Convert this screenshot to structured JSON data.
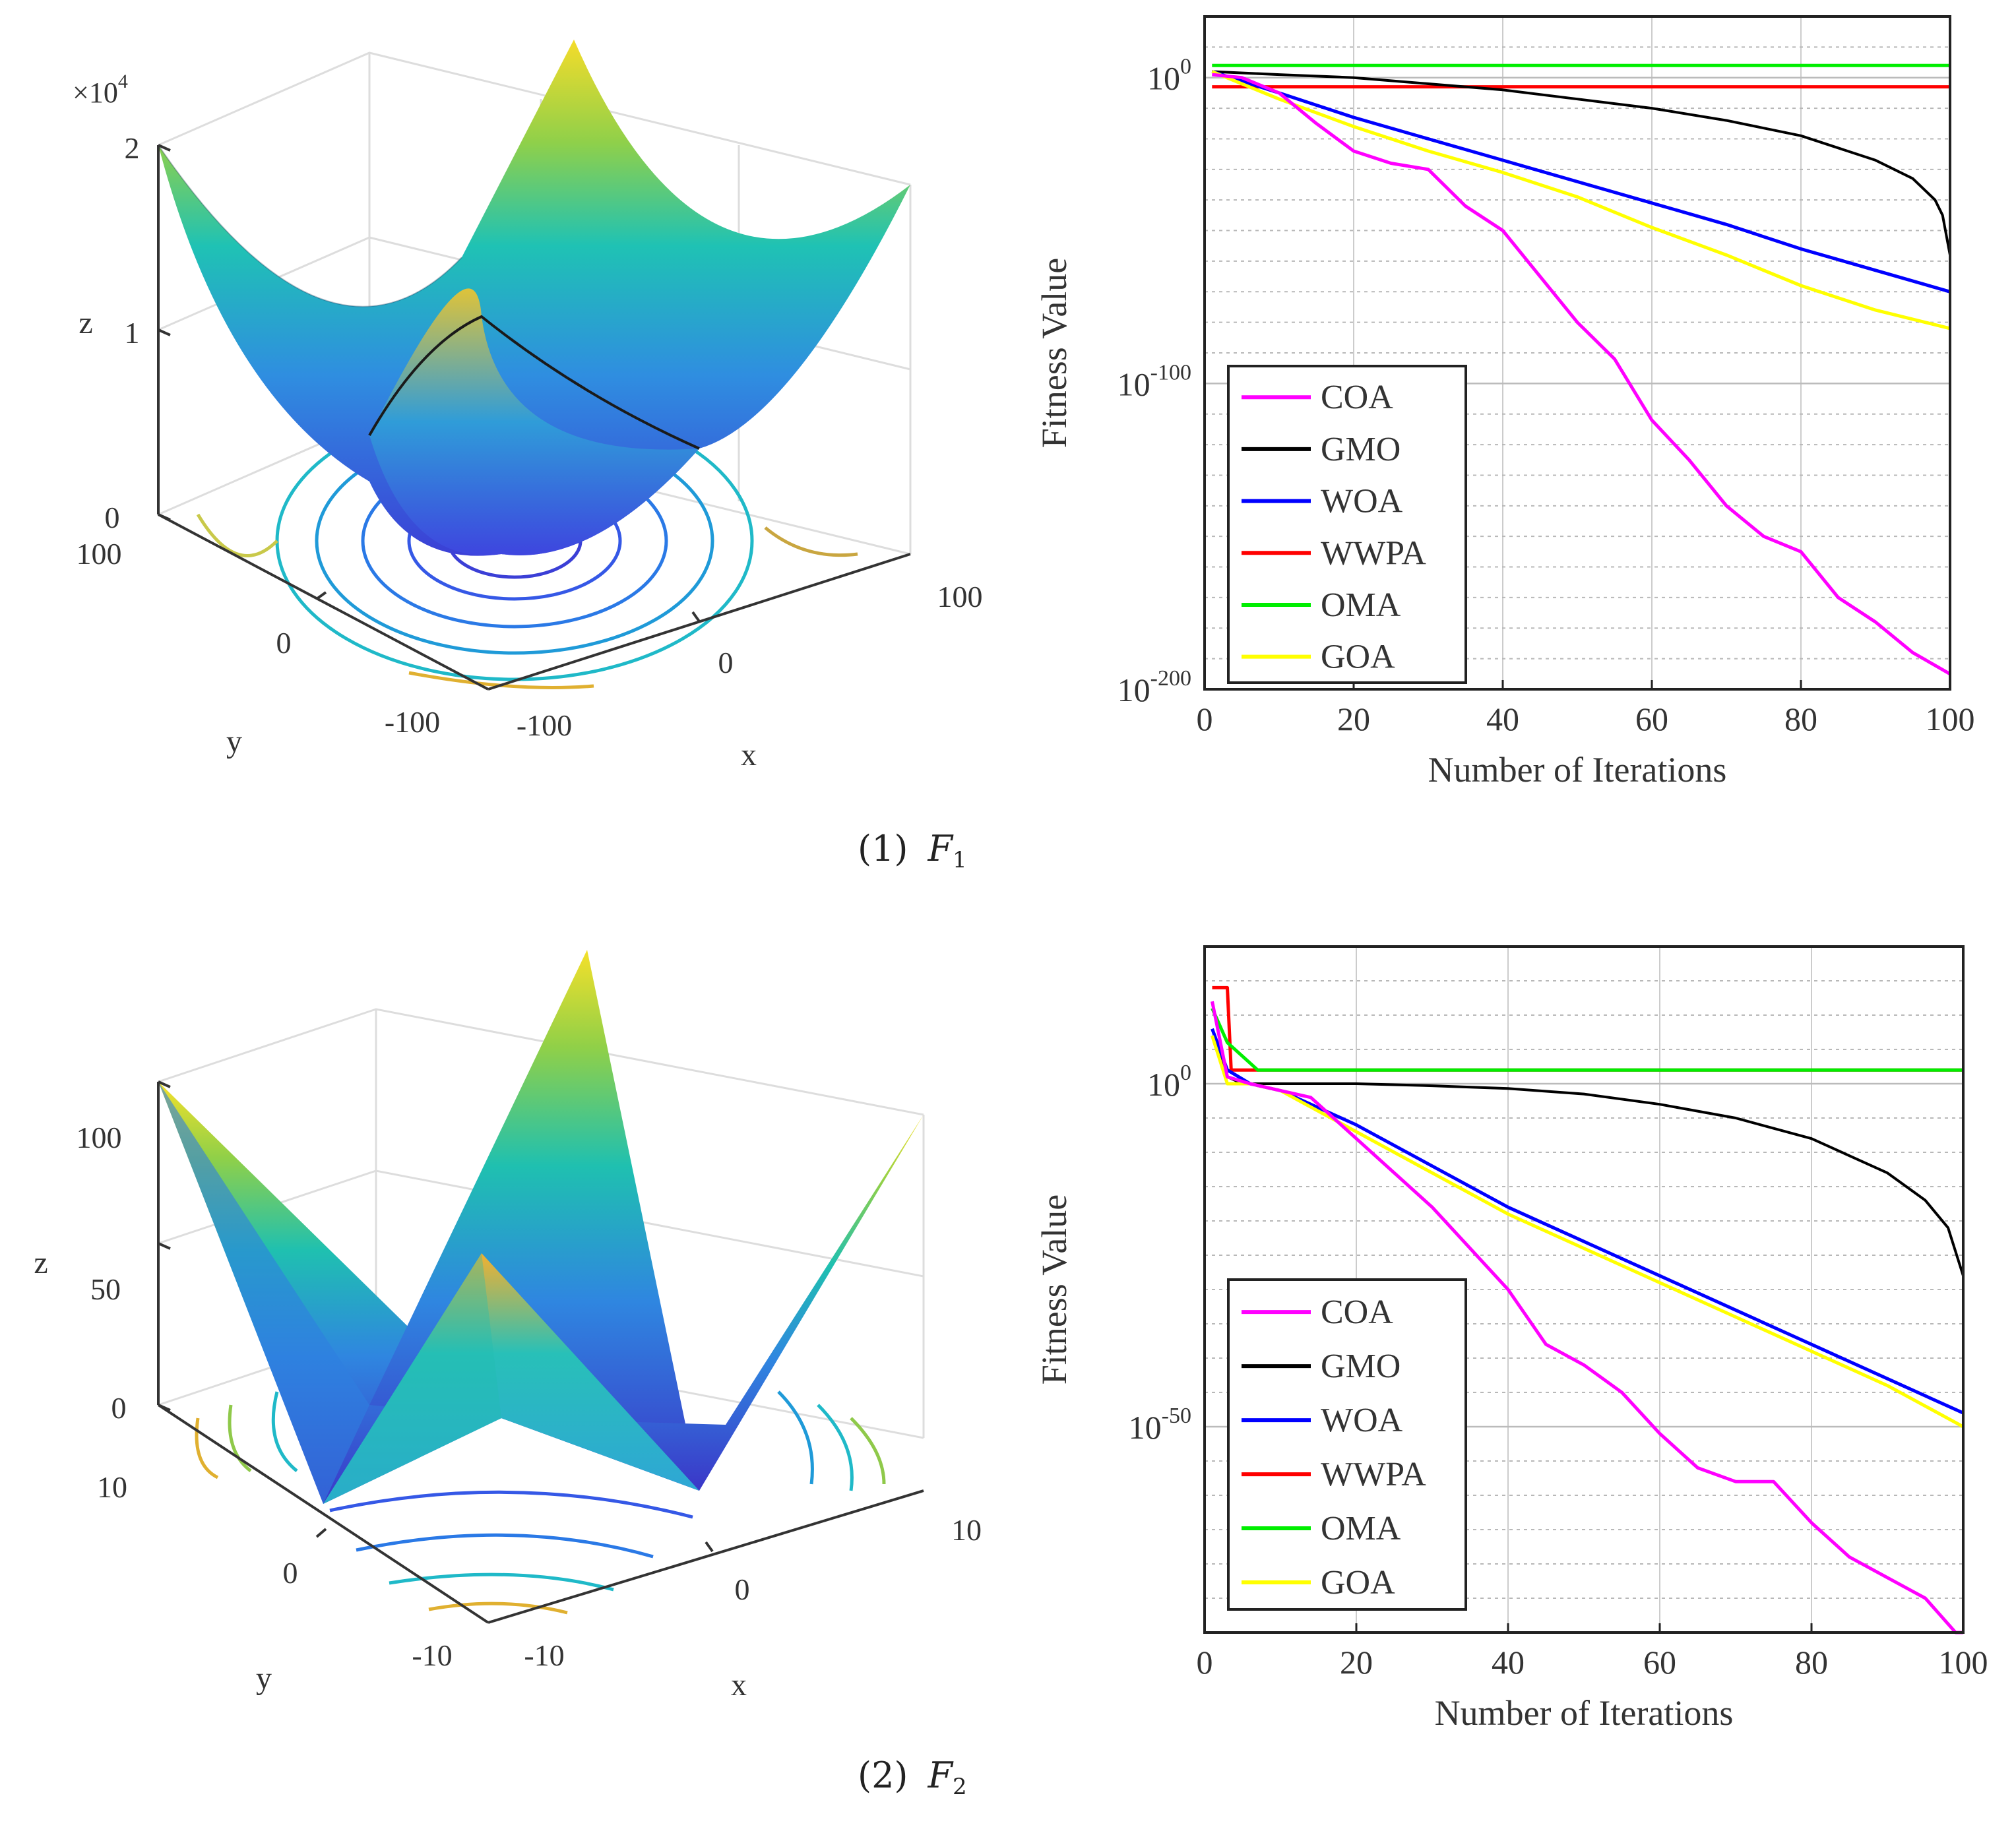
{
  "figure1": {
    "caption_prefix": "(1)",
    "caption_func": "F",
    "caption_sub": "1",
    "surface": {
      "z_labels": [
        "0",
        "1",
        "2"
      ],
      "z_multiplier_base": "×10",
      "z_multiplier_exp": "4",
      "zlabel": "z",
      "y_ticks": [
        "100",
        "0",
        "-100"
      ],
      "x_ticks": [
        "-100",
        "0",
        "100"
      ],
      "xlabel": "x",
      "ylabel": "y"
    }
  },
  "figure2": {
    "caption_prefix": "(2)",
    "caption_func": "F",
    "caption_sub": "2",
    "surface": {
      "z_labels": [
        "0",
        "50",
        "100"
      ],
      "zlabel": "z",
      "y_ticks": [
        "10",
        "0",
        "-10"
      ],
      "x_ticks": [
        "-10",
        "0",
        "10"
      ],
      "xlabel": "x",
      "ylabel": "y"
    }
  },
  "colors": {
    "COA": "#ff00ff",
    "GMO": "#000000",
    "WOA": "#0000ff",
    "WWPA": "#ff0000",
    "OMA": "#00ee00",
    "GOA": "#ffff00"
  },
  "chart_data": [
    {
      "type": "line",
      "yscale": "log",
      "xlabel": "Number of Iterations",
      "ylabel": "Fitness Value",
      "xlim": [
        0,
        100
      ],
      "ylim_log10": [
        -200,
        20
      ],
      "x_ticks": [
        "0",
        "20",
        "40",
        "60",
        "80",
        "100"
      ],
      "y_tick_base": "10",
      "y_ticks": [
        {
          "exp": "0",
          "value": 0
        },
        {
          "exp": "-100",
          "value": -100
        },
        {
          "exp": "-200",
          "value": -200
        }
      ],
      "legend": "bottom-left",
      "series": [
        {
          "name": "COA",
          "x": [
            1,
            5,
            10,
            15,
            20,
            25,
            30,
            35,
            40,
            45,
            50,
            55,
            60,
            65,
            70,
            75,
            80,
            85,
            90,
            95,
            100
          ],
          "log10": [
            1,
            0,
            -5,
            -15,
            -24,
            -28,
            -30,
            -42,
            -50,
            -65,
            -80,
            -92,
            -112,
            -125,
            -140,
            -150,
            -155,
            -170,
            -178,
            -188,
            -195
          ]
        },
        {
          "name": "GMO",
          "x": [
            1,
            10,
            20,
            30,
            40,
            50,
            60,
            70,
            80,
            90,
            95,
            98,
            99,
            100
          ],
          "log10": [
            2,
            1,
            0,
            -2,
            -4,
            -7,
            -10,
            -14,
            -19,
            -27,
            -33,
            -40,
            -45,
            -58
          ]
        },
        {
          "name": "WOA",
          "x": [
            1,
            10,
            20,
            30,
            40,
            50,
            60,
            70,
            80,
            90,
            100
          ],
          "log10": [
            2,
            -5,
            -13,
            -20,
            -27,
            -34,
            -41,
            -48,
            -56,
            -63,
            -70
          ]
        },
        {
          "name": "WWPA",
          "x": [
            1,
            100
          ],
          "log10": [
            -3,
            -3
          ]
        },
        {
          "name": "OMA",
          "x": [
            1,
            100
          ],
          "log10": [
            4,
            4
          ]
        },
        {
          "name": "GOA",
          "x": [
            1,
            10,
            20,
            30,
            40,
            50,
            60,
            70,
            80,
            90,
            100
          ],
          "log10": [
            2,
            -7,
            -16,
            -24,
            -31,
            -39,
            -49,
            -58,
            -68,
            -76,
            -82
          ]
        }
      ]
    },
    {
      "type": "line",
      "yscale": "log",
      "xlabel": "Number of Iterations",
      "ylabel": "Fitness Value",
      "xlim": [
        0,
        100
      ],
      "ylim_log10": [
        -80,
        20
      ],
      "x_ticks": [
        "0",
        "20",
        "40",
        "60",
        "80",
        "100"
      ],
      "y_tick_base": "10",
      "y_ticks": [
        {
          "exp": "0",
          "value": 0
        },
        {
          "exp": "-50",
          "value": -50
        }
      ],
      "legend": "bottom-left",
      "series": [
        {
          "name": "COA",
          "x": [
            1,
            3,
            6,
            10,
            14,
            20,
            25,
            30,
            35,
            40,
            45,
            50,
            55,
            60,
            65,
            70,
            75,
            80,
            85,
            90,
            95,
            99,
            100
          ],
          "log10": [
            12,
            1,
            0,
            -1,
            -2,
            -8,
            -13,
            -18,
            -24,
            -30,
            -38,
            -41,
            -45,
            -51,
            -56,
            -58,
            -58,
            -64,
            -69,
            -72,
            -75,
            -80,
            -80
          ]
        },
        {
          "name": "GMO",
          "x": [
            1,
            3,
            5,
            10,
            20,
            30,
            40,
            50,
            60,
            70,
            80,
            90,
            95,
            98,
            100
          ],
          "log10": [
            7,
            1,
            0,
            0,
            0,
            -0.3,
            -0.7,
            -1.5,
            -3,
            -5,
            -8,
            -13,
            -17,
            -21,
            -28
          ]
        },
        {
          "name": "WOA",
          "x": [
            1,
            3,
            6,
            10,
            20,
            30,
            40,
            50,
            60,
            70,
            80,
            90,
            100
          ],
          "log10": [
            8,
            2,
            0,
            -1,
            -6,
            -12,
            -18,
            -23,
            -28,
            -33,
            -38,
            -43,
            -48
          ]
        },
        {
          "name": "WWPA",
          "x": [
            1,
            3,
            3.5,
            5,
            10,
            100
          ],
          "log10": [
            14,
            14,
            2,
            2,
            2,
            2
          ]
        },
        {
          "name": "OMA",
          "x": [
            1,
            3,
            7,
            10,
            100
          ],
          "log10": [
            11,
            6,
            2,
            2,
            2
          ]
        },
        {
          "name": "GOA",
          "x": [
            1,
            3,
            6,
            10,
            20,
            30,
            40,
            50,
            60,
            70,
            80,
            90,
            100
          ],
          "log10": [
            7,
            0,
            0,
            -1,
            -7,
            -13,
            -19,
            -24,
            -29,
            -34,
            -39,
            -44,
            -50
          ]
        }
      ]
    }
  ]
}
